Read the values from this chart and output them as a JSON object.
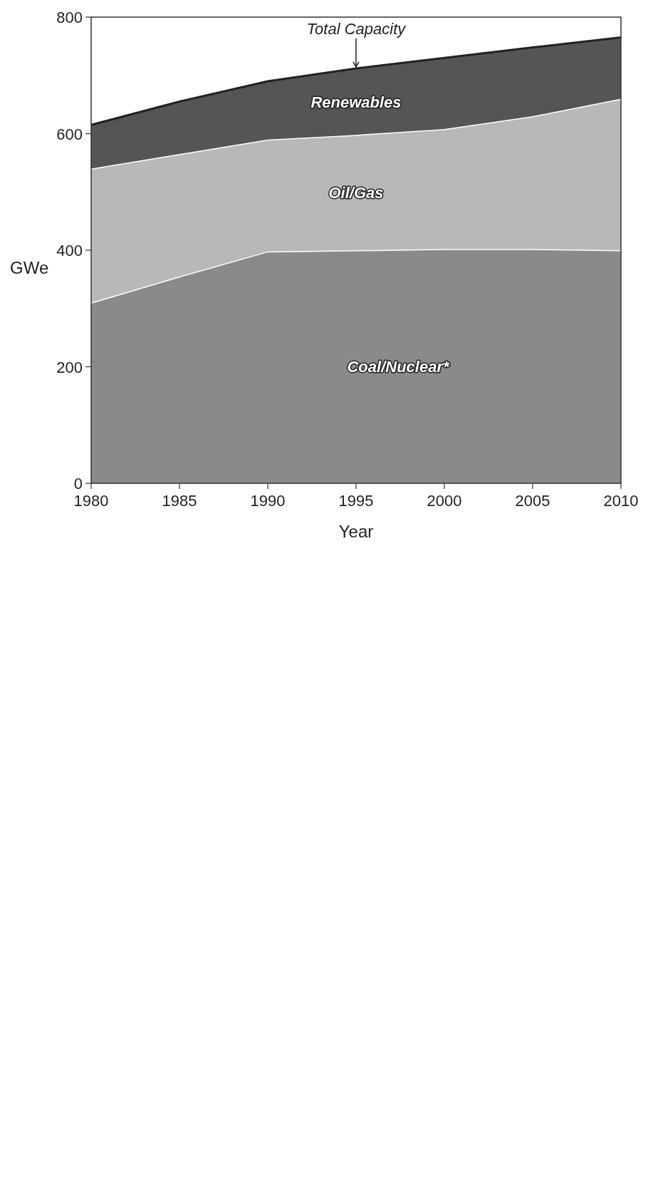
{
  "chart_data": {
    "type": "area",
    "stacked": true,
    "xlabel": "Year",
    "ylabel": "GWe",
    "x": [
      1980,
      1985,
      1990,
      1995,
      2000,
      2005,
      2010
    ],
    "series": [
      {
        "name": "Coal/Nuclear*",
        "color": "#8a8a8a",
        "values": [
          310,
          355,
          398,
          400,
          402,
          402,
          400
        ]
      },
      {
        "name": "Oil/Gas",
        "color": "#b8b8b8",
        "values": [
          230,
          210,
          192,
          198,
          206,
          228,
          260
        ]
      },
      {
        "name": "Renewables",
        "color": "#555555",
        "values": [
          75,
          90,
          100,
          114,
          122,
          118,
          105
        ]
      }
    ],
    "xlim": [
      1980,
      2010
    ],
    "ylim": [
      0,
      800
    ],
    "xticks": [
      1980,
      1985,
      1990,
      1995,
      2000,
      2005,
      2010
    ],
    "yticks": [
      0,
      200,
      400,
      600,
      800
    ],
    "annotations": [
      {
        "text": "Total Capacity",
        "x": 1995,
        "y": 712
      }
    ],
    "grid": false
  }
}
